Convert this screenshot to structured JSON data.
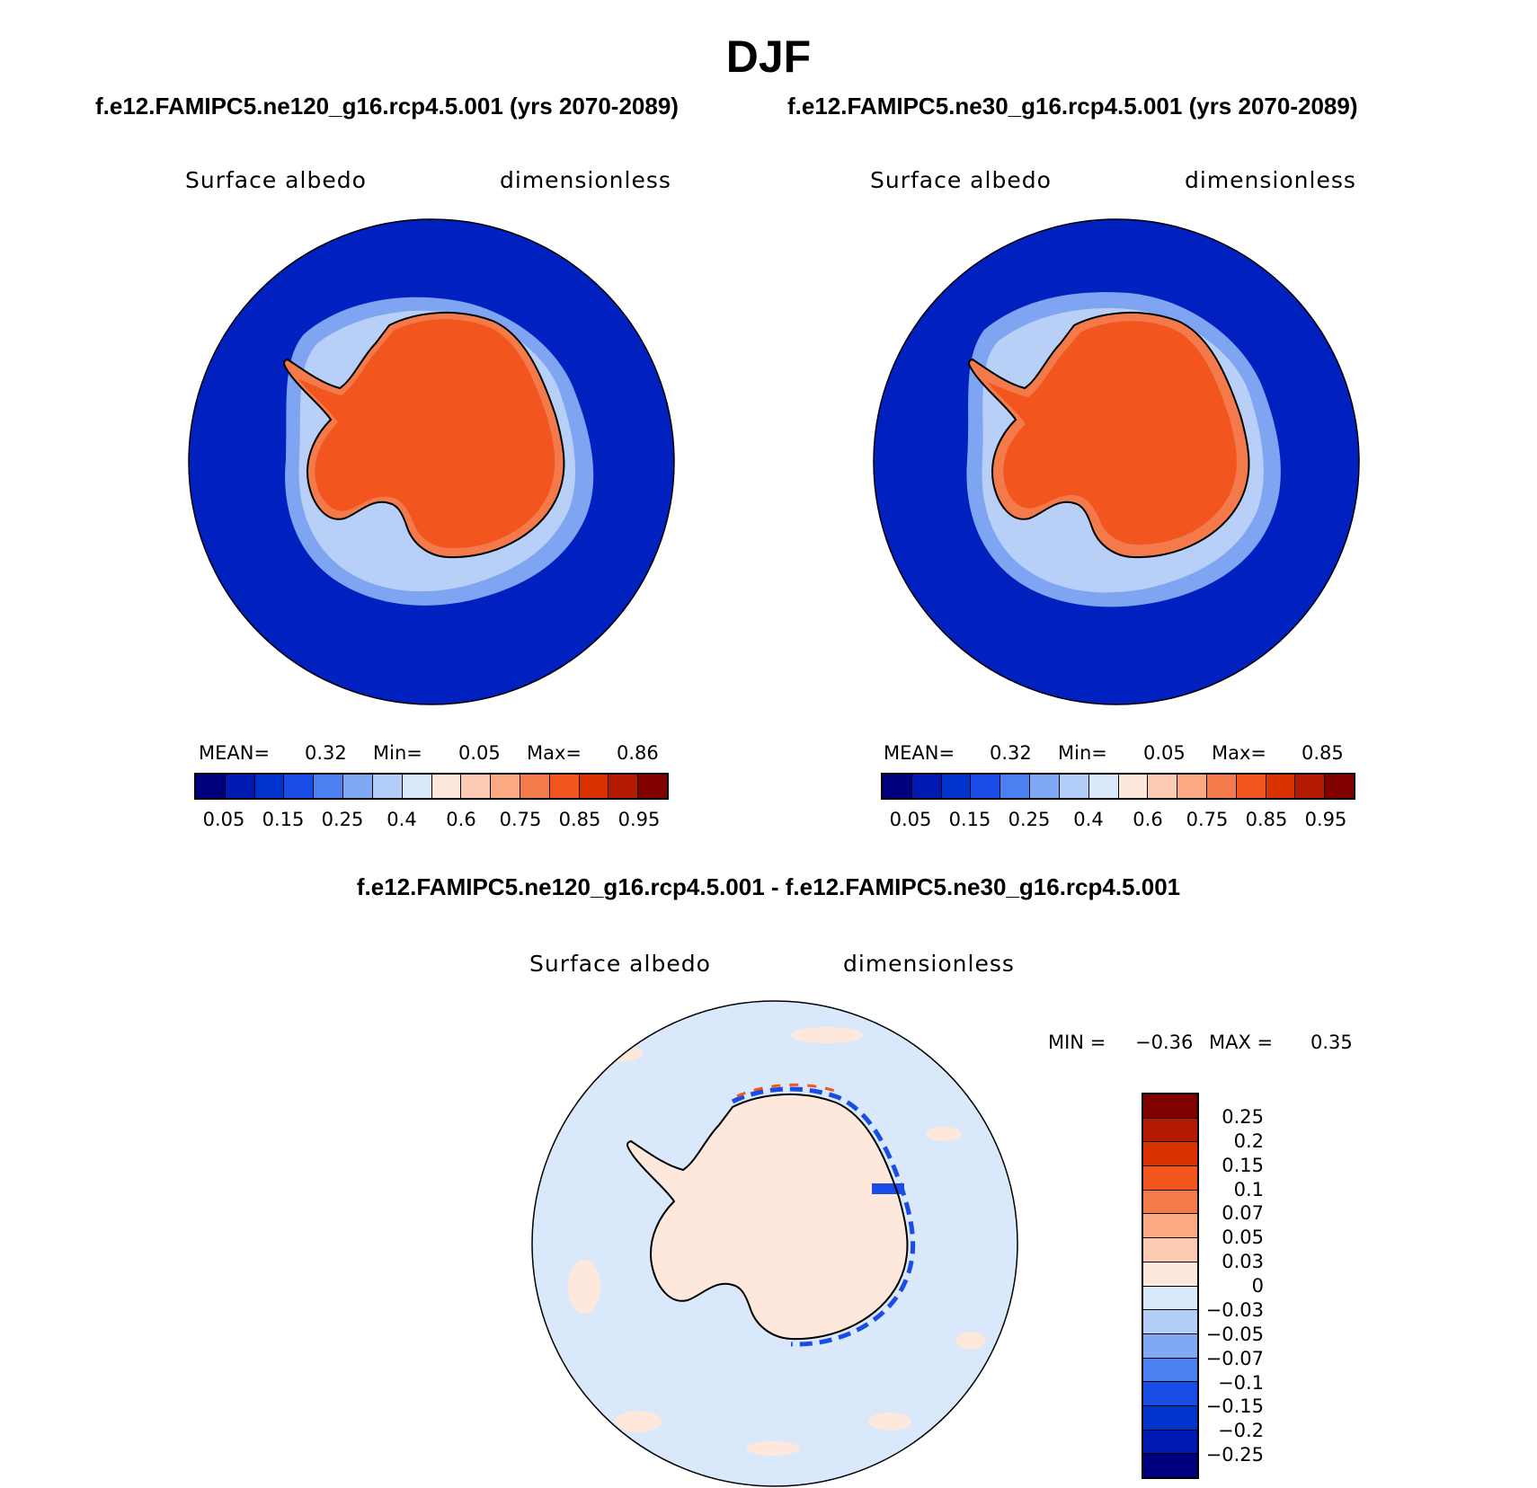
{
  "title": "DJF",
  "panels": [
    {
      "case": "f.e12.FAMIPC5.ne120_g16.rcp4.5.001 (yrs 2070-2089)",
      "variable": "Surface albedo",
      "units": "dimensionless",
      "stats": {
        "mean_label": "MEAN=",
        "mean": "0.32",
        "min_label": "Min=",
        "min": "0.05",
        "max_label": "Max=",
        "max": "0.86"
      }
    },
    {
      "case": "f.e12.FAMIPC5.ne30_g16.rcp4.5.001 (yrs 2070-2089)",
      "variable": "Surface albedo",
      "units": "dimensionless",
      "stats": {
        "mean_label": "MEAN=",
        "mean": "0.32",
        "min_label": "Min=",
        "min": "0.05",
        "max_label": "Max=",
        "max": "0.85"
      }
    }
  ],
  "colorbar": {
    "colors": [
      "#00007f",
      "#0019b2",
      "#0033cc",
      "#1a4ce6",
      "#4c7ff2",
      "#80a8f5",
      "#b3cef8",
      "#d9e8fb",
      "#fee8dc",
      "#fdcbb3",
      "#fba883",
      "#f47a4c",
      "#f2561e",
      "#db3300",
      "#b31a00",
      "#800000"
    ],
    "labels": [
      "0.05",
      "0.15",
      "0.25",
      "0.4",
      "0.6",
      "0.75",
      "0.85",
      "0.95"
    ]
  },
  "difference": {
    "title": "f.e12.FAMIPC5.ne120_g16.rcp4.5.001 - f.e12.FAMIPC5.ne30_g16.rcp4.5.001",
    "variable": "Surface albedo",
    "units": "dimensionless",
    "minmax": {
      "min_label": "MIN =",
      "min": "−0.36",
      "max_label": "MAX =",
      "max": "0.35"
    },
    "colorbar": {
      "colors": [
        "#800000",
        "#b31a00",
        "#db3300",
        "#f2561e",
        "#f47a4c",
        "#fba883",
        "#fdcbb3",
        "#fee8dc",
        "#d9e8fb",
        "#b3cef8",
        "#80a8f5",
        "#4c7ff2",
        "#1a4ce6",
        "#0033cc",
        "#0019b2",
        "#00007f"
      ],
      "labels": [
        "0.25",
        "0.2",
        "0.15",
        "0.1",
        "0.07",
        "0.05",
        "0.03",
        "0",
        "−0.03",
        "−0.05",
        "−0.07",
        "−0.1",
        "−0.15",
        "−0.2",
        "−0.25"
      ]
    }
  },
  "map_colors": {
    "ocean": "#0020c0",
    "sea_ice_light": "#b8cff8",
    "sea_ice_mid": "#7fa5f2",
    "land_ice": "#f2561e",
    "land_ice_edge": "#f47a4c",
    "diff_background": "#d9e8fb",
    "diff_land": "#fee8dc",
    "coast": "#000000"
  }
}
